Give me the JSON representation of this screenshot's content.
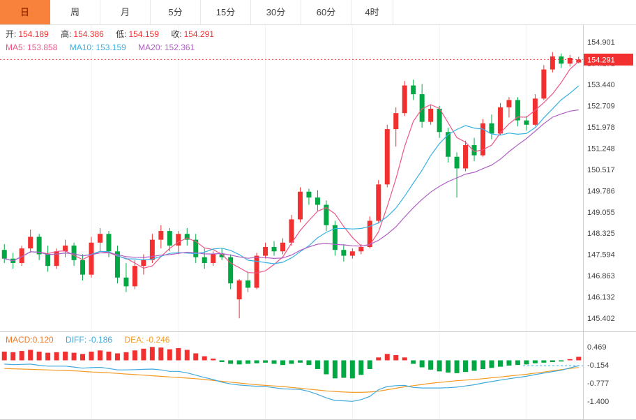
{
  "toolbar": {
    "tabs": [
      {
        "label": "日",
        "active": true
      },
      {
        "label": "周",
        "active": false
      },
      {
        "label": "月",
        "active": false
      },
      {
        "label": "5分",
        "active": false
      },
      {
        "label": "15分",
        "active": false
      },
      {
        "label": "30分",
        "active": false
      },
      {
        "label": "60分",
        "active": false
      },
      {
        "label": "4时",
        "active": false
      }
    ]
  },
  "quote_bar": {
    "open_label": "开:",
    "open": "154.189",
    "high_label": "高:",
    "high": "154.386",
    "low_label": "低:",
    "low": "154.159",
    "close_label": "收:",
    "close": "154.291"
  },
  "ma_bar": {
    "ma5_label": "MA5:",
    "ma5": "153.858",
    "ma10_label": "MA10:",
    "ma10": "153.159",
    "ma20_label": "MA20:",
    "ma20": "152.361"
  },
  "macd_bar": {
    "macd_label": "MACD:",
    "macd": "0.120",
    "diff_label": "DIFF:",
    "diff": "-0.186",
    "dea_label": "DEA:",
    "dea": "-0.246"
  },
  "colors": {
    "up": "#f23030",
    "down": "#00a843",
    "ma5": "#ee5586",
    "ma10": "#38b2e3",
    "ma20": "#b05ec4",
    "diff": "#3fa9dc",
    "dea": "#f59a23",
    "price_line": "#f23030",
    "badge_bg": "#f23030",
    "badge_text": "#ffffff",
    "axis_text": "#444444",
    "grid": "#f2f2f2",
    "border": "#cccccc",
    "tab_active_bg": "#f8823c",
    "tab_active_text": "#9c2f00"
  },
  "chart_data": {
    "type": "candlestick",
    "title": "",
    "main": {
      "ylim": [
        144.95,
        155.45
      ],
      "axis_ticks": [
        154.901,
        154.171,
        153.44,
        152.709,
        151.978,
        151.248,
        150.517,
        149.786,
        149.055,
        148.325,
        147.594,
        146.863,
        146.132,
        145.402
      ],
      "current_price": 154.291,
      "ohlc": {
        "open": 154.189,
        "high": 154.386,
        "low": 154.159,
        "close": 154.291
      },
      "ma_values": {
        "MA5": 153.858,
        "MA10": 153.159,
        "MA20": 152.361
      },
      "ma_periods": [
        5,
        10,
        20
      ],
      "candles": [
        [
          147.75,
          147.95,
          147.3,
          147.45
        ],
        [
          147.45,
          147.65,
          147.1,
          147.3
        ],
        [
          147.3,
          147.9,
          147.2,
          147.8
        ],
        [
          147.8,
          148.45,
          147.65,
          148.2
        ],
        [
          148.2,
          148.3,
          147.4,
          147.6
        ],
        [
          147.6,
          147.9,
          147.0,
          147.2
        ],
        [
          147.2,
          147.8,
          147.1,
          147.7
        ],
        [
          147.7,
          148.1,
          147.5,
          147.9
        ],
        [
          147.9,
          148.0,
          147.2,
          147.4
        ],
        [
          147.4,
          147.6,
          146.7,
          146.9
        ],
        [
          146.9,
          148.2,
          146.8,
          148.0
        ],
        [
          148.0,
          148.5,
          147.7,
          148.3
        ],
        [
          148.3,
          148.4,
          147.5,
          147.7
        ],
        [
          147.7,
          147.9,
          146.6,
          146.8
        ],
        [
          146.8,
          147.3,
          146.3,
          146.5
        ],
        [
          146.5,
          147.4,
          146.4,
          147.2
        ],
        [
          147.2,
          147.6,
          146.9,
          147.4
        ],
        [
          147.4,
          148.3,
          147.3,
          148.1
        ],
        [
          148.1,
          148.6,
          147.8,
          148.4
        ],
        [
          148.4,
          148.5,
          147.7,
          147.9
        ],
        [
          147.9,
          148.4,
          147.6,
          148.3
        ],
        [
          148.3,
          148.5,
          147.9,
          148.1
        ],
        [
          148.1,
          148.3,
          147.3,
          147.5
        ],
        [
          147.5,
          147.8,
          147.1,
          147.3
        ],
        [
          147.3,
          147.7,
          147.2,
          147.6
        ],
        [
          147.6,
          147.8,
          147.4,
          147.5
        ],
        [
          147.5,
          147.6,
          146.4,
          146.6
        ],
        [
          146.05,
          146.75,
          145.4,
          146.7
        ],
        [
          146.7,
          147.0,
          146.3,
          146.45
        ],
        [
          146.45,
          147.65,
          146.4,
          147.55
        ],
        [
          147.55,
          148.0,
          147.45,
          147.85
        ],
        [
          147.85,
          148.05,
          147.55,
          147.7
        ],
        [
          147.7,
          148.15,
          147.6,
          148.0
        ],
        [
          148.0,
          148.95,
          147.9,
          148.8
        ],
        [
          148.8,
          149.9,
          148.7,
          149.75
        ],
        [
          149.75,
          149.85,
          149.3,
          149.55
        ],
        [
          149.55,
          149.8,
          149.1,
          149.3
        ],
        [
          149.3,
          149.45,
          148.4,
          148.6
        ],
        [
          148.6,
          148.75,
          147.55,
          147.75
        ],
        [
          147.75,
          147.95,
          147.35,
          147.55
        ],
        [
          147.55,
          147.8,
          147.45,
          147.7
        ],
        [
          147.7,
          147.95,
          147.6,
          147.85
        ],
        [
          147.85,
          148.9,
          147.8,
          148.75
        ],
        [
          148.75,
          150.15,
          148.65,
          150.0
        ],
        [
          150.0,
          152.05,
          149.9,
          151.9
        ],
        [
          151.9,
          152.65,
          151.3,
          152.45
        ],
        [
          152.45,
          153.55,
          152.35,
          153.4
        ],
        [
          153.4,
          153.6,
          152.9,
          153.1
        ],
        [
          153.1,
          153.45,
          151.95,
          152.15
        ],
        [
          152.15,
          152.75,
          152.05,
          152.6
        ],
        [
          152.6,
          152.7,
          151.6,
          151.8
        ],
        [
          151.8,
          151.95,
          150.75,
          150.95
        ],
        [
          150.95,
          151.1,
          149.55,
          150.55
        ],
        [
          150.55,
          151.5,
          150.45,
          151.35
        ],
        [
          151.35,
          151.6,
          150.8,
          151.0
        ],
        [
          151.0,
          152.25,
          150.95,
          152.1
        ],
        [
          152.1,
          152.4,
          151.55,
          151.75
        ],
        [
          151.75,
          152.8,
          151.7,
          152.65
        ],
        [
          152.65,
          153.0,
          152.3,
          152.9
        ],
        [
          152.9,
          153.0,
          152.0,
          152.2
        ],
        [
          152.2,
          152.35,
          151.85,
          152.05
        ],
        [
          152.05,
          153.1,
          152.0,
          152.95
        ],
        [
          152.95,
          154.1,
          152.9,
          153.95
        ],
        [
          153.95,
          154.55,
          153.85,
          154.4
        ],
        [
          154.4,
          154.5,
          154.0,
          154.15
        ],
        [
          154.15,
          154.45,
          154.05,
          154.35
        ],
        [
          154.189,
          154.386,
          154.159,
          154.291
        ]
      ]
    },
    "macd": {
      "ylim": [
        -2.05,
        0.97
      ],
      "axis_ticks": [
        0.469,
        -0.154,
        -0.777,
        -1.4
      ],
      "values": {
        "MACD": 0.12,
        "DIFF": -0.186,
        "DEA": -0.246
      },
      "diff": [
        -0.13,
        -0.15,
        -0.14,
        -0.13,
        -0.17,
        -0.2,
        -0.2,
        -0.2,
        -0.23,
        -0.27,
        -0.25,
        -0.24,
        -0.28,
        -0.33,
        -0.33,
        -0.32,
        -0.31,
        -0.3,
        -0.33,
        -0.38,
        -0.38,
        -0.43,
        -0.51,
        -0.59,
        -0.66,
        -0.75,
        -0.81,
        -0.85,
        -0.87,
        -0.89,
        -0.9,
        -0.94,
        -0.98,
        -0.99,
        -1.0,
        -1.07,
        -1.17,
        -1.29,
        -1.38,
        -1.39,
        -1.41,
        -1.35,
        -1.24,
        -1.01,
        -0.9,
        -0.87,
        -0.86,
        -0.93,
        -0.95,
        -0.95,
        -0.95,
        -0.94,
        -0.92,
        -0.88,
        -0.84,
        -0.78,
        -0.73,
        -0.68,
        -0.63,
        -0.59,
        -0.55,
        -0.49,
        -0.44,
        -0.39,
        -0.34,
        -0.26,
        -0.186
      ],
      "dea": [
        -0.28,
        -0.29,
        -0.3,
        -0.31,
        -0.32,
        -0.33,
        -0.34,
        -0.35,
        -0.36,
        -0.38,
        -0.4,
        -0.41,
        -0.43,
        -0.45,
        -0.47,
        -0.49,
        -0.51,
        -0.53,
        -0.55,
        -0.57,
        -0.59,
        -0.61,
        -0.63,
        -0.66,
        -0.69,
        -0.72,
        -0.75,
        -0.78,
        -0.81,
        -0.84,
        -0.86,
        -0.88,
        -0.9,
        -0.93,
        -0.96,
        -0.99,
        -1.02,
        -1.05,
        -1.07,
        -1.09,
        -1.1,
        -1.1,
        -1.09,
        -1.06,
        -1.01,
        -0.96,
        -0.91,
        -0.87,
        -0.83,
        -0.79,
        -0.76,
        -0.73,
        -0.7,
        -0.68,
        -0.66,
        -0.63,
        -0.6,
        -0.57,
        -0.54,
        -0.51,
        -0.48,
        -0.44,
        -0.4,
        -0.36,
        -0.32,
        -0.28,
        -0.246
      ]
    }
  }
}
